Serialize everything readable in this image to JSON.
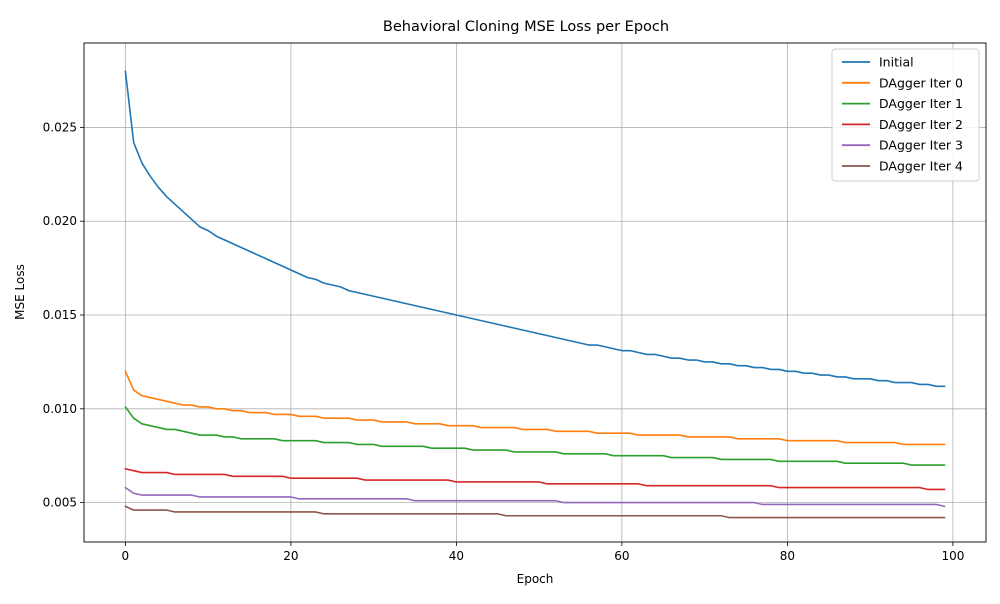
{
  "chart_data": {
    "type": "line",
    "title": "Behavioral Cloning MSE Loss per Epoch",
    "xlabel": "Epoch",
    "ylabel": "MSE Loss",
    "xlim": [
      -5,
      104
    ],
    "ylim": [
      0.0029,
      0.0295
    ],
    "xticks": [
      0,
      20,
      40,
      60,
      80,
      100
    ],
    "xtick_labels": [
      "0",
      "20",
      "40",
      "60",
      "80",
      "100"
    ],
    "yticks": [
      0.005,
      0.01,
      0.015,
      0.02,
      0.025
    ],
    "ytick_labels": [
      "0.005",
      "0.010",
      "0.015",
      "0.020",
      "0.025"
    ],
    "grid": true,
    "legend_position": "top-right",
    "x": [
      0,
      1,
      2,
      3,
      4,
      5,
      6,
      7,
      8,
      9,
      10,
      11,
      12,
      13,
      14,
      15,
      16,
      17,
      18,
      19,
      20,
      21,
      22,
      23,
      24,
      25,
      26,
      27,
      28,
      29,
      30,
      31,
      32,
      33,
      34,
      35,
      36,
      37,
      38,
      39,
      40,
      41,
      42,
      43,
      44,
      45,
      46,
      47,
      48,
      49,
      50,
      51,
      52,
      53,
      54,
      55,
      56,
      57,
      58,
      59,
      60,
      61,
      62,
      63,
      64,
      65,
      66,
      67,
      68,
      69,
      70,
      71,
      72,
      73,
      74,
      75,
      76,
      77,
      78,
      79,
      80,
      81,
      82,
      83,
      84,
      85,
      86,
      87,
      88,
      89,
      90,
      91,
      92,
      93,
      94,
      95,
      96,
      97,
      98,
      99
    ],
    "series": [
      {
        "name": "Initial",
        "color": "#1f77b4",
        "values": [
          0.028,
          0.0242,
          0.0231,
          0.0224,
          0.0218,
          0.0213,
          0.0209,
          0.0205,
          0.0201,
          0.0197,
          0.0195,
          0.0192,
          0.019,
          0.0188,
          0.0186,
          0.0184,
          0.0182,
          0.018,
          0.0178,
          0.0176,
          0.0174,
          0.0172,
          0.017,
          0.0169,
          0.0167,
          0.0166,
          0.0165,
          0.0163,
          0.0162,
          0.0161,
          0.016,
          0.0159,
          0.0158,
          0.0157,
          0.0156,
          0.0155,
          0.0154,
          0.0153,
          0.0152,
          0.0151,
          0.015,
          0.0149,
          0.0148,
          0.0147,
          0.0146,
          0.0145,
          0.0144,
          0.0143,
          0.0142,
          0.0141,
          0.014,
          0.0139,
          0.0138,
          0.0137,
          0.0136,
          0.0135,
          0.0134,
          0.0134,
          0.0133,
          0.0132,
          0.0131,
          0.0131,
          0.013,
          0.0129,
          0.0129,
          0.0128,
          0.0127,
          0.0127,
          0.0126,
          0.0126,
          0.0125,
          0.0125,
          0.0124,
          0.0124,
          0.0123,
          0.0123,
          0.0122,
          0.0122,
          0.0121,
          0.0121,
          0.012,
          0.012,
          0.0119,
          0.0119,
          0.0118,
          0.0118,
          0.0117,
          0.0117,
          0.0116,
          0.0116,
          0.0116,
          0.0115,
          0.0115,
          0.0114,
          0.0114,
          0.0114,
          0.0113,
          0.0113,
          0.0112,
          0.0112
        ]
      },
      {
        "name": "DAgger Iter 0",
        "color": "#ff7f0e",
        "values": [
          0.012,
          0.011,
          0.0107,
          0.0106,
          0.0105,
          0.0104,
          0.0103,
          0.0102,
          0.0102,
          0.0101,
          0.0101,
          0.01,
          0.01,
          0.0099,
          0.0099,
          0.0098,
          0.0098,
          0.0098,
          0.0097,
          0.0097,
          0.0097,
          0.0096,
          0.0096,
          0.0096,
          0.0095,
          0.0095,
          0.0095,
          0.0095,
          0.0094,
          0.0094,
          0.0094,
          0.0093,
          0.0093,
          0.0093,
          0.0093,
          0.0092,
          0.0092,
          0.0092,
          0.0092,
          0.0091,
          0.0091,
          0.0091,
          0.0091,
          0.009,
          0.009,
          0.009,
          0.009,
          0.009,
          0.0089,
          0.0089,
          0.0089,
          0.0089,
          0.0088,
          0.0088,
          0.0088,
          0.0088,
          0.0088,
          0.0087,
          0.0087,
          0.0087,
          0.0087,
          0.0087,
          0.0086,
          0.0086,
          0.0086,
          0.0086,
          0.0086,
          0.0086,
          0.0085,
          0.0085,
          0.0085,
          0.0085,
          0.0085,
          0.0085,
          0.0084,
          0.0084,
          0.0084,
          0.0084,
          0.0084,
          0.0084,
          0.0083,
          0.0083,
          0.0083,
          0.0083,
          0.0083,
          0.0083,
          0.0083,
          0.0082,
          0.0082,
          0.0082,
          0.0082,
          0.0082,
          0.0082,
          0.0082,
          0.0081,
          0.0081,
          0.0081,
          0.0081,
          0.0081,
          0.0081
        ]
      },
      {
        "name": "DAgger Iter 1",
        "color": "#2ca02c",
        "values": [
          0.0101,
          0.0095,
          0.0092,
          0.0091,
          0.009,
          0.0089,
          0.0089,
          0.0088,
          0.0087,
          0.0086,
          0.0086,
          0.0086,
          0.0085,
          0.0085,
          0.0084,
          0.0084,
          0.0084,
          0.0084,
          0.0084,
          0.0083,
          0.0083,
          0.0083,
          0.0083,
          0.0083,
          0.0082,
          0.0082,
          0.0082,
          0.0082,
          0.0081,
          0.0081,
          0.0081,
          0.008,
          0.008,
          0.008,
          0.008,
          0.008,
          0.008,
          0.0079,
          0.0079,
          0.0079,
          0.0079,
          0.0079,
          0.0078,
          0.0078,
          0.0078,
          0.0078,
          0.0078,
          0.0077,
          0.0077,
          0.0077,
          0.0077,
          0.0077,
          0.0077,
          0.0076,
          0.0076,
          0.0076,
          0.0076,
          0.0076,
          0.0076,
          0.0075,
          0.0075,
          0.0075,
          0.0075,
          0.0075,
          0.0075,
          0.0075,
          0.0074,
          0.0074,
          0.0074,
          0.0074,
          0.0074,
          0.0074,
          0.0073,
          0.0073,
          0.0073,
          0.0073,
          0.0073,
          0.0073,
          0.0073,
          0.0072,
          0.0072,
          0.0072,
          0.0072,
          0.0072,
          0.0072,
          0.0072,
          0.0072,
          0.0071,
          0.0071,
          0.0071,
          0.0071,
          0.0071,
          0.0071,
          0.0071,
          0.0071,
          0.007,
          0.007,
          0.007,
          0.007,
          0.007
        ]
      },
      {
        "name": "DAgger Iter 2",
        "color": "#d62728",
        "values": [
          0.0068,
          0.0067,
          0.0066,
          0.0066,
          0.0066,
          0.0066,
          0.0065,
          0.0065,
          0.0065,
          0.0065,
          0.0065,
          0.0065,
          0.0065,
          0.0064,
          0.0064,
          0.0064,
          0.0064,
          0.0064,
          0.0064,
          0.0064,
          0.0063,
          0.0063,
          0.0063,
          0.0063,
          0.0063,
          0.0063,
          0.0063,
          0.0063,
          0.0063,
          0.0062,
          0.0062,
          0.0062,
          0.0062,
          0.0062,
          0.0062,
          0.0062,
          0.0062,
          0.0062,
          0.0062,
          0.0062,
          0.0061,
          0.0061,
          0.0061,
          0.0061,
          0.0061,
          0.0061,
          0.0061,
          0.0061,
          0.0061,
          0.0061,
          0.0061,
          0.006,
          0.006,
          0.006,
          0.006,
          0.006,
          0.006,
          0.006,
          0.006,
          0.006,
          0.006,
          0.006,
          0.006,
          0.0059,
          0.0059,
          0.0059,
          0.0059,
          0.0059,
          0.0059,
          0.0059,
          0.0059,
          0.0059,
          0.0059,
          0.0059,
          0.0059,
          0.0059,
          0.0059,
          0.0059,
          0.0059,
          0.0058,
          0.0058,
          0.0058,
          0.0058,
          0.0058,
          0.0058,
          0.0058,
          0.0058,
          0.0058,
          0.0058,
          0.0058,
          0.0058,
          0.0058,
          0.0058,
          0.0058,
          0.0058,
          0.0058,
          0.0058,
          0.0057,
          0.0057,
          0.0057
        ]
      },
      {
        "name": "DAgger Iter 3",
        "color": "#9467bd",
        "values": [
          0.0058,
          0.0055,
          0.0054,
          0.0054,
          0.0054,
          0.0054,
          0.0054,
          0.0054,
          0.0054,
          0.0053,
          0.0053,
          0.0053,
          0.0053,
          0.0053,
          0.0053,
          0.0053,
          0.0053,
          0.0053,
          0.0053,
          0.0053,
          0.0053,
          0.0052,
          0.0052,
          0.0052,
          0.0052,
          0.0052,
          0.0052,
          0.0052,
          0.0052,
          0.0052,
          0.0052,
          0.0052,
          0.0052,
          0.0052,
          0.0052,
          0.0051,
          0.0051,
          0.0051,
          0.0051,
          0.0051,
          0.0051,
          0.0051,
          0.0051,
          0.0051,
          0.0051,
          0.0051,
          0.0051,
          0.0051,
          0.0051,
          0.0051,
          0.0051,
          0.0051,
          0.0051,
          0.005,
          0.005,
          0.005,
          0.005,
          0.005,
          0.005,
          0.005,
          0.005,
          0.005,
          0.005,
          0.005,
          0.005,
          0.005,
          0.005,
          0.005,
          0.005,
          0.005,
          0.005,
          0.005,
          0.005,
          0.005,
          0.005,
          0.005,
          0.005,
          0.0049,
          0.0049,
          0.0049,
          0.0049,
          0.0049,
          0.0049,
          0.0049,
          0.0049,
          0.0049,
          0.0049,
          0.0049,
          0.0049,
          0.0049,
          0.0049,
          0.0049,
          0.0049,
          0.0049,
          0.0049,
          0.0049,
          0.0049,
          0.0049,
          0.0049,
          0.0048
        ]
      },
      {
        "name": "DAgger Iter 4",
        "color": "#8c564b",
        "values": [
          0.0048,
          0.0046,
          0.0046,
          0.0046,
          0.0046,
          0.0046,
          0.0045,
          0.0045,
          0.0045,
          0.0045,
          0.0045,
          0.0045,
          0.0045,
          0.0045,
          0.0045,
          0.0045,
          0.0045,
          0.0045,
          0.0045,
          0.0045,
          0.0045,
          0.0045,
          0.0045,
          0.0045,
          0.0044,
          0.0044,
          0.0044,
          0.0044,
          0.0044,
          0.0044,
          0.0044,
          0.0044,
          0.0044,
          0.0044,
          0.0044,
          0.0044,
          0.0044,
          0.0044,
          0.0044,
          0.0044,
          0.0044,
          0.0044,
          0.0044,
          0.0044,
          0.0044,
          0.0044,
          0.0043,
          0.0043,
          0.0043,
          0.0043,
          0.0043,
          0.0043,
          0.0043,
          0.0043,
          0.0043,
          0.0043,
          0.0043,
          0.0043,
          0.0043,
          0.0043,
          0.0043,
          0.0043,
          0.0043,
          0.0043,
          0.0043,
          0.0043,
          0.0043,
          0.0043,
          0.0043,
          0.0043,
          0.0043,
          0.0043,
          0.0043,
          0.0042,
          0.0042,
          0.0042,
          0.0042,
          0.0042,
          0.0042,
          0.0042,
          0.0042,
          0.0042,
          0.0042,
          0.0042,
          0.0042,
          0.0042,
          0.0042,
          0.0042,
          0.0042,
          0.0042,
          0.0042,
          0.0042,
          0.0042,
          0.0042,
          0.0042,
          0.0042,
          0.0042,
          0.0042,
          0.0042,
          0.0042
        ]
      }
    ]
  }
}
